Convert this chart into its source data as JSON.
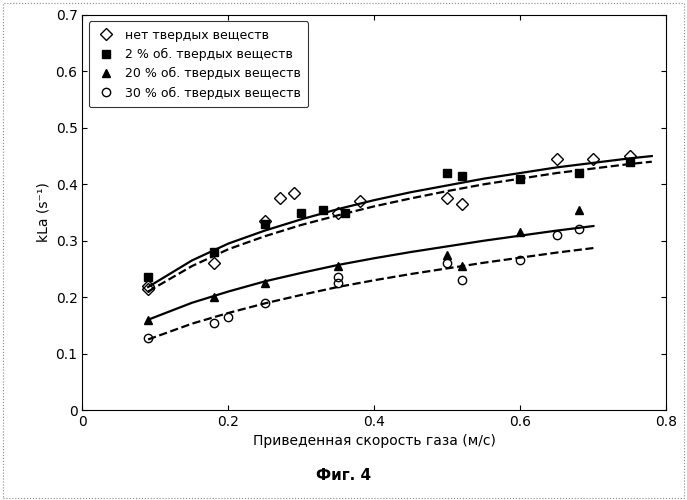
{
  "title": "",
  "xlabel": "Приведенная скорость газа (м/с)",
  "ylabel": "kLa (s⁻¹)",
  "xlim": [
    0,
    0.8
  ],
  "ylim": [
    0,
    0.7
  ],
  "xticks": [
    0,
    0.2,
    0.4,
    0.6,
    0.8
  ],
  "yticks": [
    0,
    0.1,
    0.2,
    0.3,
    0.4,
    0.5,
    0.6,
    0.7
  ],
  "caption": "Фиг. 4",
  "series_no_solids": {
    "label": "нет твердых веществ",
    "x": [
      0.09,
      0.09,
      0.18,
      0.25,
      0.27,
      0.29,
      0.35,
      0.38,
      0.5,
      0.52,
      0.65,
      0.7,
      0.75
    ],
    "y": [
      0.215,
      0.22,
      0.26,
      0.335,
      0.375,
      0.385,
      0.35,
      0.37,
      0.375,
      0.365,
      0.445,
      0.445,
      0.45
    ],
    "marker": "D",
    "color": "black",
    "markersize": 6,
    "fillstyle": "none",
    "line": false
  },
  "series_2pct": {
    "label": "2 % об. твердых веществ",
    "x": [
      0.09,
      0.18,
      0.25,
      0.3,
      0.33,
      0.36,
      0.5,
      0.52,
      0.6,
      0.68,
      0.75
    ],
    "y": [
      0.235,
      0.28,
      0.33,
      0.35,
      0.355,
      0.35,
      0.42,
      0.415,
      0.41,
      0.42,
      0.44
    ],
    "marker": "s",
    "color": "black",
    "markersize": 6,
    "fillstyle": "full",
    "line": false
  },
  "series_20pct": {
    "label": "20 % об. твердых веществ",
    "x": [
      0.09,
      0.18,
      0.25,
      0.35,
      0.5,
      0.52,
      0.6,
      0.68
    ],
    "y": [
      0.16,
      0.2,
      0.225,
      0.255,
      0.275,
      0.255,
      0.315,
      0.355
    ],
    "marker": "^",
    "color": "black",
    "markersize": 6,
    "fillstyle": "full",
    "line": false
  },
  "series_30pct": {
    "label": "30 % об. твердых веществ",
    "x": [
      0.09,
      0.18,
      0.2,
      0.25,
      0.35,
      0.35,
      0.5,
      0.52,
      0.6,
      0.65,
      0.68
    ],
    "y": [
      0.128,
      0.155,
      0.165,
      0.19,
      0.225,
      0.235,
      0.26,
      0.23,
      0.265,
      0.31,
      0.32
    ],
    "marker": "o",
    "color": "black",
    "markersize": 6,
    "fillstyle": "none",
    "line": false
  },
  "curve_no_solids_solid": {
    "x": [
      0.09,
      0.15,
      0.2,
      0.25,
      0.3,
      0.35,
      0.4,
      0.45,
      0.5,
      0.55,
      0.6,
      0.65,
      0.7,
      0.75,
      0.78
    ],
    "y": [
      0.218,
      0.265,
      0.295,
      0.318,
      0.338,
      0.356,
      0.372,
      0.386,
      0.398,
      0.41,
      0.42,
      0.43,
      0.438,
      0.446,
      0.45
    ],
    "linestyle": "-",
    "color": "black",
    "linewidth": 1.6
  },
  "curve_2pct_dashed": {
    "x": [
      0.09,
      0.15,
      0.2,
      0.25,
      0.3,
      0.35,
      0.4,
      0.45,
      0.5,
      0.55,
      0.6,
      0.65,
      0.7,
      0.75,
      0.78
    ],
    "y": [
      0.21,
      0.255,
      0.285,
      0.308,
      0.328,
      0.345,
      0.361,
      0.375,
      0.388,
      0.4,
      0.41,
      0.42,
      0.428,
      0.436,
      0.44
    ],
    "linestyle": "--",
    "color": "black",
    "linewidth": 1.6
  },
  "curve_20pct_solid": {
    "x": [
      0.09,
      0.15,
      0.2,
      0.25,
      0.3,
      0.35,
      0.4,
      0.45,
      0.5,
      0.55,
      0.6,
      0.65,
      0.7
    ],
    "y": [
      0.16,
      0.19,
      0.21,
      0.228,
      0.243,
      0.257,
      0.269,
      0.28,
      0.29,
      0.3,
      0.309,
      0.318,
      0.326
    ],
    "linestyle": "-",
    "color": "black",
    "linewidth": 1.6
  },
  "curve_30pct_dashed": {
    "x": [
      0.09,
      0.15,
      0.2,
      0.25,
      0.3,
      0.35,
      0.4,
      0.45,
      0.5,
      0.55,
      0.6,
      0.65,
      0.7
    ],
    "y": [
      0.125,
      0.153,
      0.172,
      0.189,
      0.204,
      0.218,
      0.23,
      0.241,
      0.251,
      0.261,
      0.27,
      0.279,
      0.287
    ],
    "linestyle": "--",
    "color": "black",
    "linewidth": 1.6
  },
  "legend_entries": [
    {
      "label": "нет твердых веществ",
      "marker": "D",
      "fillstyle": "none"
    },
    {
      "label": "2 % об. твердых веществ",
      "marker": "s",
      "fillstyle": "full"
    },
    {
      "label": "20 % об. твердых веществ",
      "marker": "^",
      "fillstyle": "full"
    },
    {
      "label": "30 % об. твердых веществ",
      "marker": "o",
      "fillstyle": "none"
    }
  ],
  "background_color": "#ffffff",
  "font_size": 10,
  "tick_fontsize": 10,
  "caption_fontsize": 11,
  "caption_fontweight": "bold",
  "outer_border_color": "#aaaaaa",
  "outer_border_linestyle": "dotted"
}
